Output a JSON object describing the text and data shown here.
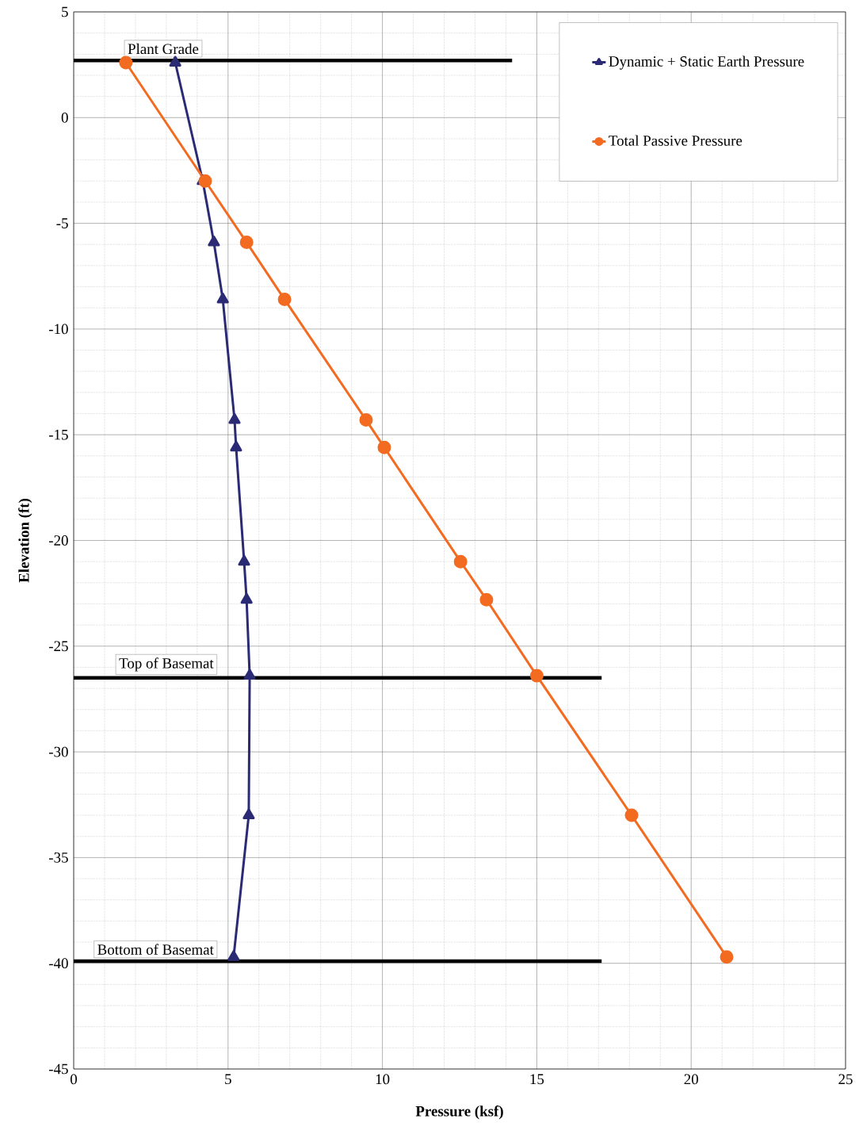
{
  "chart_data": {
    "type": "line",
    "xlabel": "Pressure (ksf)",
    "ylabel": "Elevation (ft)",
    "xlim": [
      0,
      25
    ],
    "ylim": [
      -45,
      5
    ],
    "xticks": [
      0,
      5,
      10,
      15,
      20,
      25
    ],
    "yticks": [
      -45,
      -40,
      -35,
      -30,
      -25,
      -20,
      -15,
      -10,
      -5,
      0,
      5
    ],
    "grid": true,
    "legend": "top right",
    "marker": "none",
    "series": [
      {
        "name": "Dynamic + Static Earth Pressure",
        "color": "#2b2a74",
        "marker": "triangle",
        "x": [
          3.29,
          4.18,
          4.54,
          4.83,
          5.21,
          5.26,
          5.52,
          5.6,
          5.7,
          5.67,
          5.18
        ],
        "values": [
          2.6,
          -3.0,
          -5.9,
          -8.6,
          -14.3,
          -15.6,
          -21.0,
          -22.8,
          -26.4,
          -33.0,
          -39.7
        ]
      },
      {
        "name": "Total Passive Pressure",
        "color": "#f26b21",
        "marker": "circle",
        "x": [
          1.69,
          4.26,
          5.6,
          6.83,
          9.47,
          10.06,
          12.53,
          13.37,
          15.0,
          18.07,
          21.15
        ],
        "values": [
          2.6,
          -3.0,
          -5.9,
          -8.6,
          -14.3,
          -15.6,
          -21.0,
          -22.8,
          -26.4,
          -33.0,
          -39.7
        ]
      },
      {
        "color": "#000000",
        "x": [
          0,
          14.2
        ],
        "values": [
          2.7,
          2.7
        ]
      },
      {
        "color": "#000000",
        "x": [
          0,
          17.1
        ],
        "values": [
          -26.5,
          -26.5
        ]
      },
      {
        "color": "#000000",
        "x": [
          0,
          17.1
        ],
        "values": [
          -39.9,
          -39.9
        ]
      }
    ],
    "annotations": [
      {
        "text": "Plant Grade",
        "x": 2.9,
        "y": 2.7
      },
      {
        "text": "Top of Basemat",
        "x": 3.0,
        "y": -26.5
      },
      {
        "text": "Bottom of Basemat",
        "x": 2.65,
        "y": -39.9
      }
    ]
  }
}
